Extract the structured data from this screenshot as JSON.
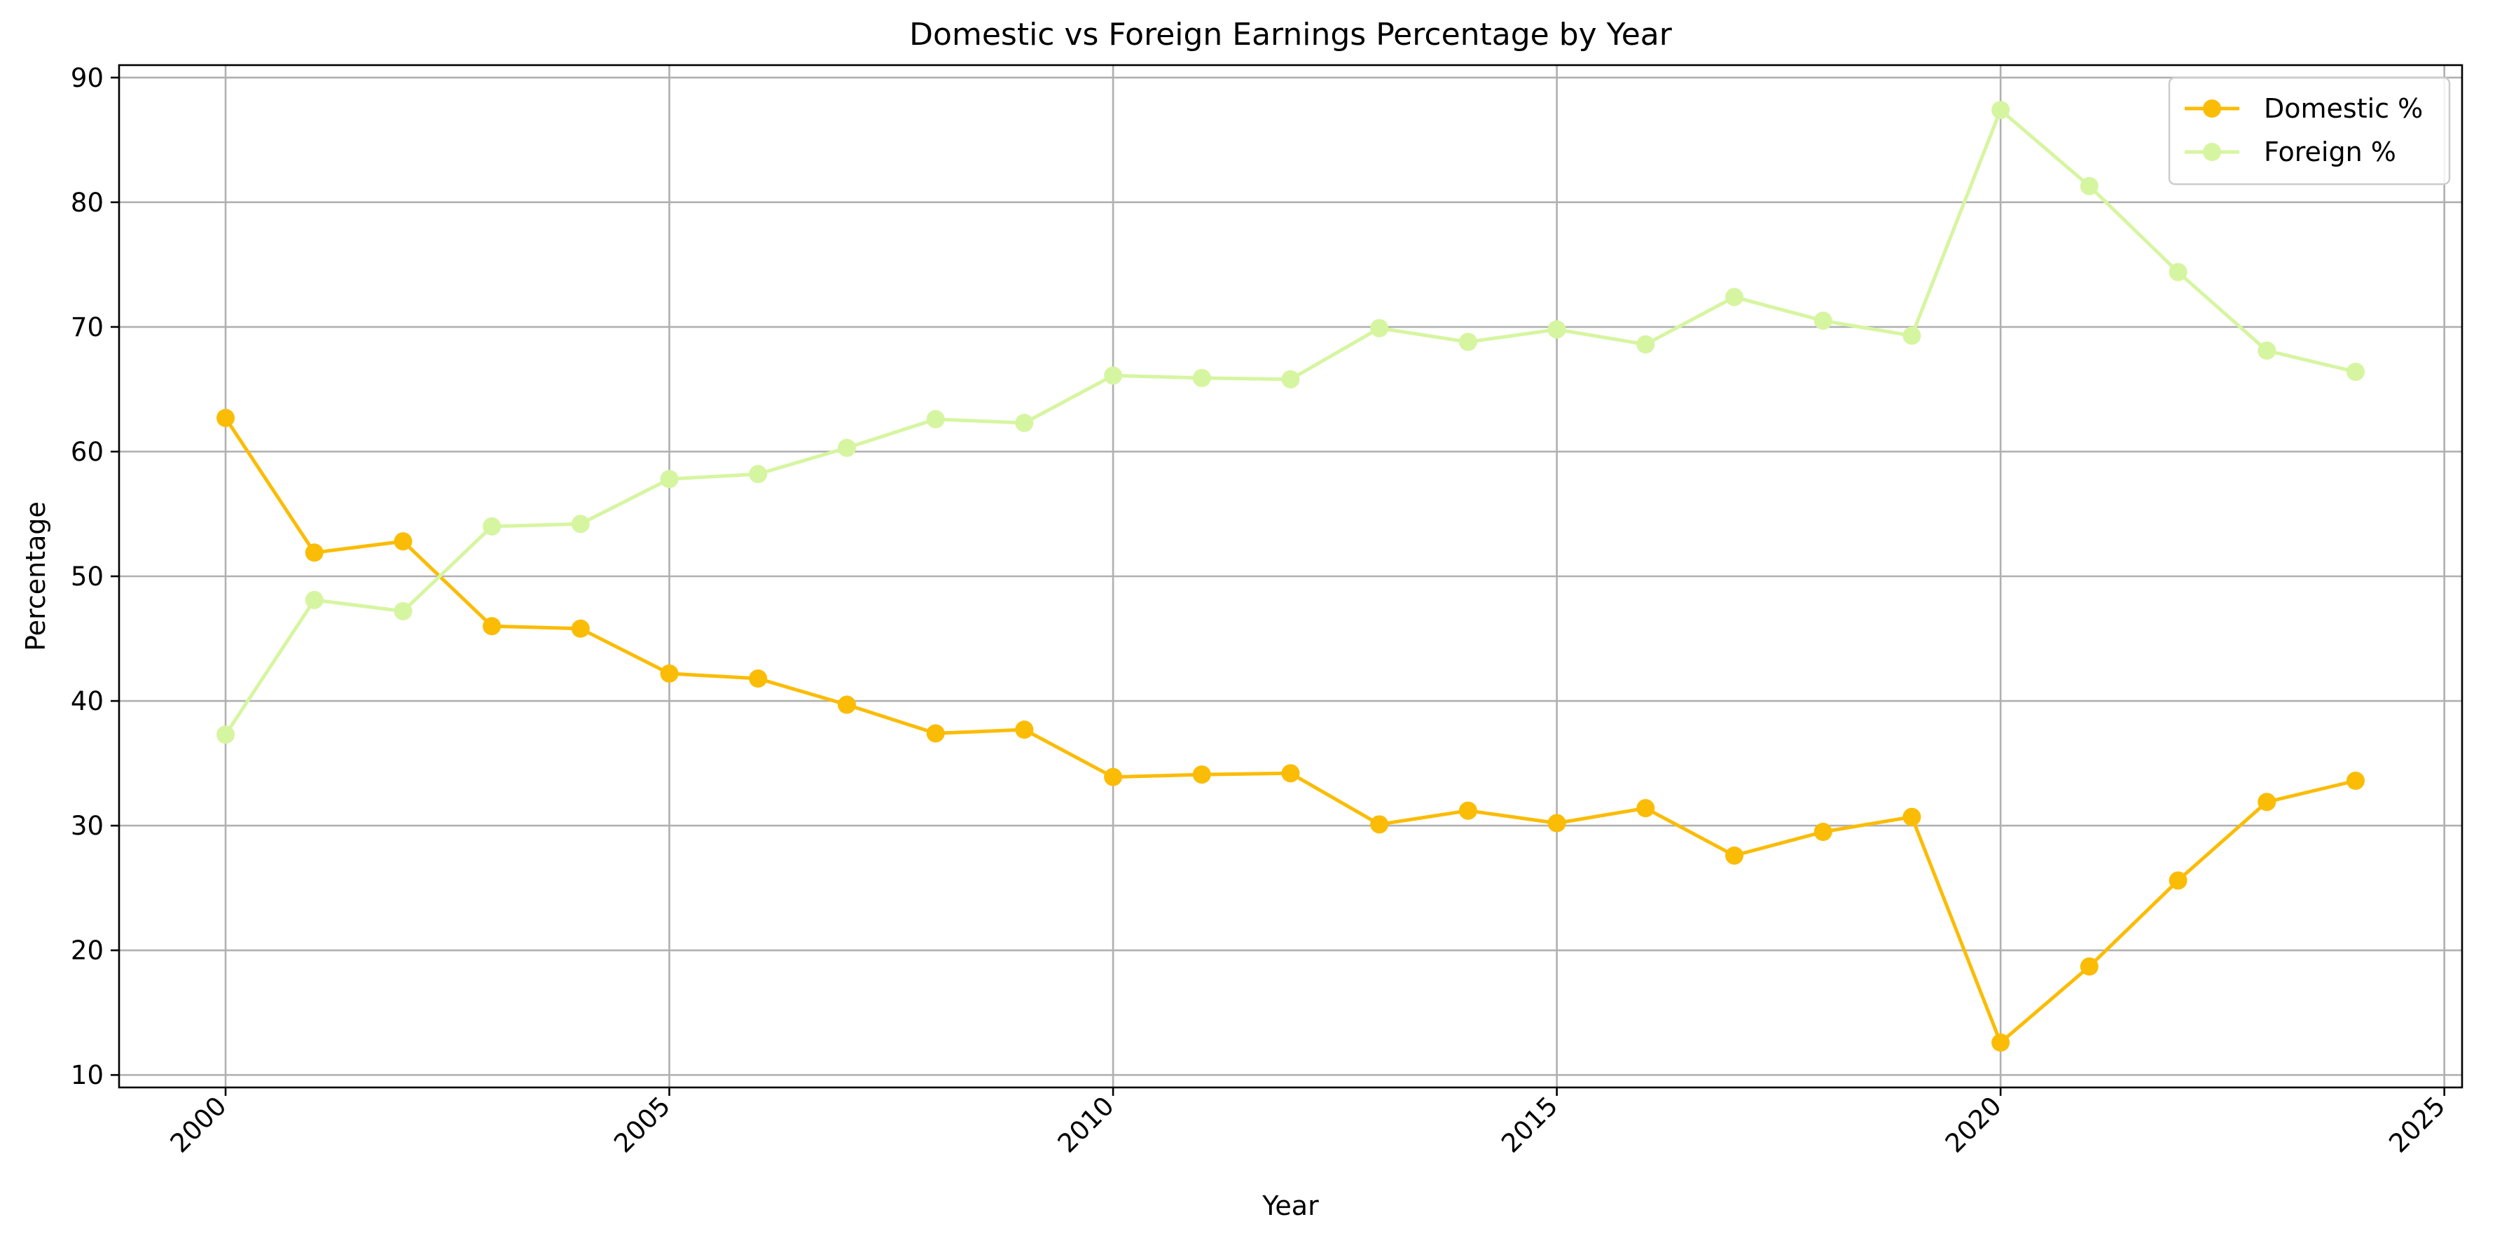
{
  "chart_data": {
    "type": "line",
    "title": "Domestic vs Foreign Earnings Percentage by Year",
    "xlabel": "Year",
    "ylabel": "Percentage",
    "xlim": [
      1998.8,
      2025.2
    ],
    "ylim": [
      9.0,
      91.0
    ],
    "x_ticks": [
      2000,
      2005,
      2010,
      2015,
      2020,
      2025
    ],
    "y_ticks": [
      10,
      20,
      30,
      40,
      50,
      60,
      70,
      80,
      90
    ],
    "grid": true,
    "legend_position": "top-right",
    "x": [
      2000,
      2001,
      2002,
      2003,
      2004,
      2005,
      2006,
      2007,
      2008,
      2009,
      2010,
      2011,
      2012,
      2013,
      2014,
      2015,
      2016,
      2017,
      2018,
      2019,
      2020,
      2021,
      2022,
      2023,
      2024
    ],
    "series": [
      {
        "name": "Domestic %",
        "color": "#fbbc05",
        "values": [
          62.7,
          51.9,
          52.8,
          46.0,
          45.8,
          42.2,
          41.8,
          39.7,
          37.4,
          37.7,
          33.9,
          34.1,
          34.2,
          30.1,
          31.2,
          30.2,
          31.4,
          27.6,
          29.5,
          30.7,
          12.6,
          18.7,
          25.6,
          31.9,
          33.6
        ]
      },
      {
        "name": "Foreign %",
        "color": "#d6f5a0",
        "values": [
          37.3,
          48.1,
          47.2,
          54.0,
          54.2,
          57.8,
          58.2,
          60.3,
          62.6,
          62.3,
          66.1,
          65.9,
          65.8,
          69.9,
          68.8,
          69.8,
          68.6,
          72.4,
          70.5,
          69.3,
          87.4,
          81.3,
          74.4,
          68.1,
          66.4
        ]
      }
    ]
  }
}
